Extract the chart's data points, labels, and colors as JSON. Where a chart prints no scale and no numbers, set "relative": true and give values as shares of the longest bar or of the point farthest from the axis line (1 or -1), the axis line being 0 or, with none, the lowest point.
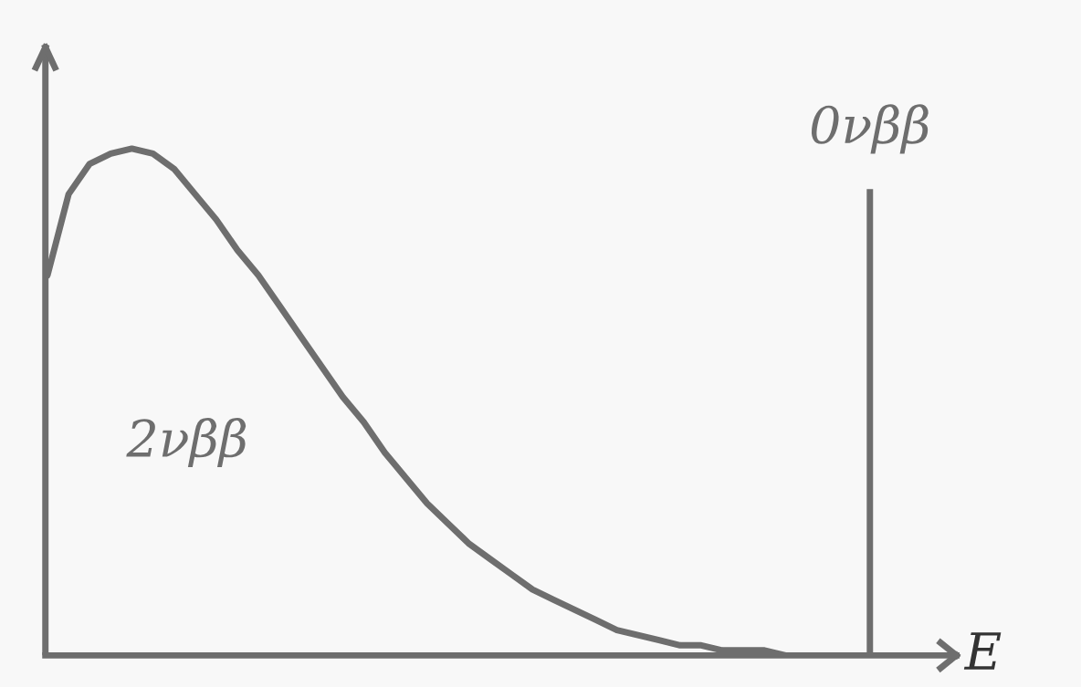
{
  "chart_data": {
    "type": "line",
    "relative": true,
    "xlabel": "E",
    "categories": [
      null,
      null,
      null,
      null,
      null,
      null,
      null,
      null,
      null,
      null,
      null,
      null,
      null,
      null,
      null,
      null,
      null,
      null,
      null,
      null,
      null,
      null,
      null,
      null,
      null,
      null,
      null,
      null,
      null,
      null,
      null,
      null,
      null,
      null,
      null,
      null,
      null,
      null,
      null,
      null
    ],
    "series": [
      {
        "name": "2νββ",
        "color": "#6e6e6e",
        "values": [
          0.75,
          0.91,
          0.97,
          0.99,
          1.0,
          0.99,
          0.96,
          0.91,
          0.86,
          0.8,
          0.75,
          0.69,
          0.63,
          0.57,
          0.51,
          0.46,
          0.4,
          0.35,
          0.3,
          0.26,
          0.22,
          0.19,
          0.16,
          0.13,
          0.11,
          0.09,
          0.07,
          0.05,
          0.04,
          0.03,
          0.02,
          0.02,
          0.01,
          0.01,
          0.01,
          0.0,
          0.0,
          0.0,
          0.0,
          0.0
        ]
      }
    ],
    "annotations": [
      "0νββ"
    ]
  }
}
